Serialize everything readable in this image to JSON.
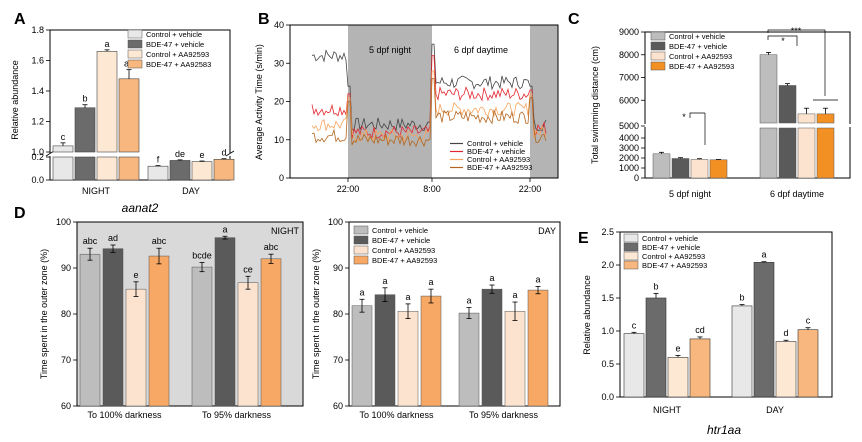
{
  "colors": {
    "ctrl_vehicle": "#e8e8e8",
    "bde_vehicle": "#6b6b6b",
    "ctrl_aa": "#fde8d4",
    "bde_aa": "#f7b77e",
    "c_light": "#bdbdbd",
    "c_dark": "#5a5a5a",
    "c_peach": "#fce3cf",
    "c_orange": "#f6a864",
    "c_orange_strong": "#f39024",
    "line_ctrl_vehicle": "#444444",
    "line_bde_vehicle": "#e3262d",
    "line_ctrl_aa": "#f7a35c",
    "line_bde_aa": "#b5651d",
    "night_shade": "#b4b4b4",
    "panel_shade": "#d9d9d9"
  },
  "chart_data": [
    {
      "id": "A",
      "letter": "A",
      "type": "bar",
      "title": "aanat2",
      "ylabel": "Relative abundance",
      "categories": [
        "NIGHT",
        "DAY"
      ],
      "legend": [
        "Control + vehicle",
        "BDE-47 + vehicle",
        "Control + AA92593",
        "BDE-47 + AA92583"
      ],
      "axis_break": {
        "lower": [
          0,
          0.2
        ],
        "upper": [
          1.0,
          1.8
        ]
      },
      "yticks_lower": [
        "0.2",
        "0.0"
      ],
      "yticks_upper": [
        "1.8",
        "1.6",
        "1.4",
        "1.2",
        "1.0"
      ],
      "series": [
        {
          "name": "Control + vehicle",
          "values": [
            1.04,
            0.12
          ],
          "errors": [
            0.02,
            0.005
          ],
          "labels": [
            "c",
            "f"
          ]
        },
        {
          "name": "BDE-47 + vehicle",
          "values": [
            1.29,
            0.17
          ],
          "errors": [
            0.02,
            0.005
          ],
          "labels": [
            "b",
            "de"
          ]
        },
        {
          "name": "Control + AA92593",
          "values": [
            1.66,
            0.16
          ],
          "errors": [
            0.01,
            0.005
          ],
          "labels": [
            "a",
            "e"
          ]
        },
        {
          "name": "BDE-47 + AA92583",
          "values": [
            1.48,
            0.18
          ],
          "errors": [
            0.06,
            0.005
          ],
          "labels": [
            "ab",
            "d"
          ]
        }
      ]
    },
    {
      "id": "B",
      "letter": "B",
      "type": "line",
      "ylabel": "Average Activity Time (s/min)",
      "ylim": [
        0,
        40
      ],
      "yticks": [
        "0",
        "10",
        "20",
        "30",
        "40"
      ],
      "xticks": [
        "22:00",
        "8:00",
        "22:00"
      ],
      "shade_labels": [
        "5 dpf night",
        "6 dpf daytime"
      ],
      "legend": [
        "Control + vehicle",
        "BDE-47 + vehicle",
        "Control + AA92593",
        "BDE-47 + AA92593"
      ],
      "segments": [
        {
          "name": "Control + vehicle",
          "levels": [
            32,
            14,
            25,
            14
          ]
        },
        {
          "name": "BDE-47 + vehicle",
          "levels": [
            18,
            12,
            22,
            13
          ]
        },
        {
          "name": "Control + AA92593",
          "levels": [
            14,
            11,
            18,
            12
          ]
        },
        {
          "name": "BDE-47 + AA92593",
          "levels": [
            11,
            10,
            16,
            11
          ]
        }
      ]
    },
    {
      "id": "C",
      "letter": "C",
      "type": "bar",
      "ylabel": "Total swimming distance (cm)",
      "categories": [
        "5 dpf night",
        "6 dpf daytime"
      ],
      "legend": [
        "Control + vehicle",
        "BDE-47 + vehicle",
        "Control + AA92593",
        "BDE-47 + AA92593"
      ],
      "axis_break": {
        "lower": [
          0,
          5000
        ],
        "upper": [
          5000,
          9000
        ]
      },
      "yticks_lower": [
        "5000",
        "4000",
        "3000",
        "2000",
        "1000",
        "0"
      ],
      "yticks_upper": [
        "9000",
        "8000",
        "7000",
        "6000",
        "5000"
      ],
      "series": [
        {
          "name": "Control + vehicle",
          "values": [
            2420,
            8000
          ],
          "errors": [
            150,
            100
          ]
        },
        {
          "name": "BDE-47 + vehicle",
          "values": [
            1950,
            6650
          ],
          "errors": [
            80,
            80
          ]
        },
        {
          "name": "Control + AA92593",
          "values": [
            1860,
            5400
          ],
          "errors": [
            70,
            250
          ]
        },
        {
          "name": "BDE-47 + AA92593",
          "values": [
            1820,
            5400
          ],
          "errors": [
            30,
            250
          ]
        }
      ],
      "annotations": [
        "*",
        "*",
        "***"
      ]
    },
    {
      "id": "D1",
      "letter": "D",
      "type": "bar",
      "panel_label": "NIGHT",
      "ylabel": "Time spent in the outer zone (%)",
      "ylim": [
        60,
        100
      ],
      "yticks": [
        "100",
        "90",
        "80",
        "70",
        "60"
      ],
      "categories": [
        "To 100% darkness",
        "To 95% darkness"
      ],
      "series": [
        {
          "name": "Control + vehicle",
          "values": [
            93.0,
            90.2
          ],
          "errors": [
            1.3,
            1.0
          ],
          "labels": [
            "abc",
            "bcde"
          ]
        },
        {
          "name": "BDE-47 + vehicle",
          "values": [
            94.2,
            96.6
          ],
          "errors": [
            0.8,
            0.3
          ],
          "labels": [
            "ad",
            "a"
          ]
        },
        {
          "name": "Control + AA92593",
          "values": [
            85.4,
            86.8
          ],
          "errors": [
            1.6,
            1.4
          ],
          "labels": [
            "e",
            "ce"
          ]
        },
        {
          "name": "BDE-47 + AA92593",
          "values": [
            92.6,
            92.0
          ],
          "errors": [
            1.7,
            1.0
          ],
          "labels": [
            "abc",
            "abc"
          ]
        }
      ]
    },
    {
      "id": "D2",
      "type": "bar",
      "panel_label": "DAY",
      "ylabel": "Time spent in the outer zone (%)",
      "ylim": [
        60,
        100
      ],
      "yticks": [
        "100",
        "90",
        "80",
        "70",
        "60"
      ],
      "categories": [
        "To 100% darkness",
        "To 95% darkness"
      ],
      "legend": [
        "Control + vehicle",
        "BDE-47 + vehicle",
        "Control + AA92593",
        "BDE-47 + AA92593"
      ],
      "series": [
        {
          "name": "Control + vehicle",
          "values": [
            81.8,
            80.2
          ],
          "errors": [
            1.4,
            1.2
          ],
          "labels": [
            "a",
            "a"
          ]
        },
        {
          "name": "BDE-47 + vehicle",
          "values": [
            84.2,
            85.4
          ],
          "errors": [
            1.5,
            0.9
          ],
          "labels": [
            "a",
            "a"
          ]
        },
        {
          "name": "Control + AA92593",
          "values": [
            80.6,
            80.6
          ],
          "errors": [
            1.6,
            2.0
          ],
          "labels": [
            "a",
            "a"
          ]
        },
        {
          "name": "BDE-47 + AA92593",
          "values": [
            83.9,
            85.2
          ],
          "errors": [
            1.5,
            0.8
          ],
          "labels": [
            "a",
            "a"
          ]
        }
      ]
    },
    {
      "id": "E",
      "letter": "E",
      "type": "bar",
      "title": "htr1aa",
      "ylabel": "Relative abundance",
      "ylim": [
        0,
        2.5
      ],
      "yticks": [
        "2.5",
        "2.0",
        "1.5",
        "1.0",
        "0.5",
        "0.0"
      ],
      "categories": [
        "NIGHT",
        "DAY"
      ],
      "legend": [
        "Control + vehicle",
        "BDE-47 + vehicle",
        "Control + AA92593",
        "BDE-47 + AA92593"
      ],
      "series": [
        {
          "name": "Control + vehicle",
          "values": [
            0.96,
            1.38
          ],
          "errors": [
            0.02,
            0.02
          ],
          "labels": [
            "c",
            "b"
          ]
        },
        {
          "name": "BDE-47 + vehicle",
          "values": [
            1.5,
            2.04
          ],
          "errors": [
            0.07,
            0.01
          ],
          "labels": [
            "b",
            "a"
          ]
        },
        {
          "name": "Control + AA92593",
          "values": [
            0.6,
            0.84
          ],
          "errors": [
            0.03,
            0.02
          ],
          "labels": [
            "e",
            "d"
          ]
        },
        {
          "name": "BDE-47 + AA92593",
          "values": [
            0.88,
            1.02
          ],
          "errors": [
            0.03,
            0.03
          ],
          "labels": [
            "cd",
            "c"
          ]
        }
      ]
    }
  ]
}
